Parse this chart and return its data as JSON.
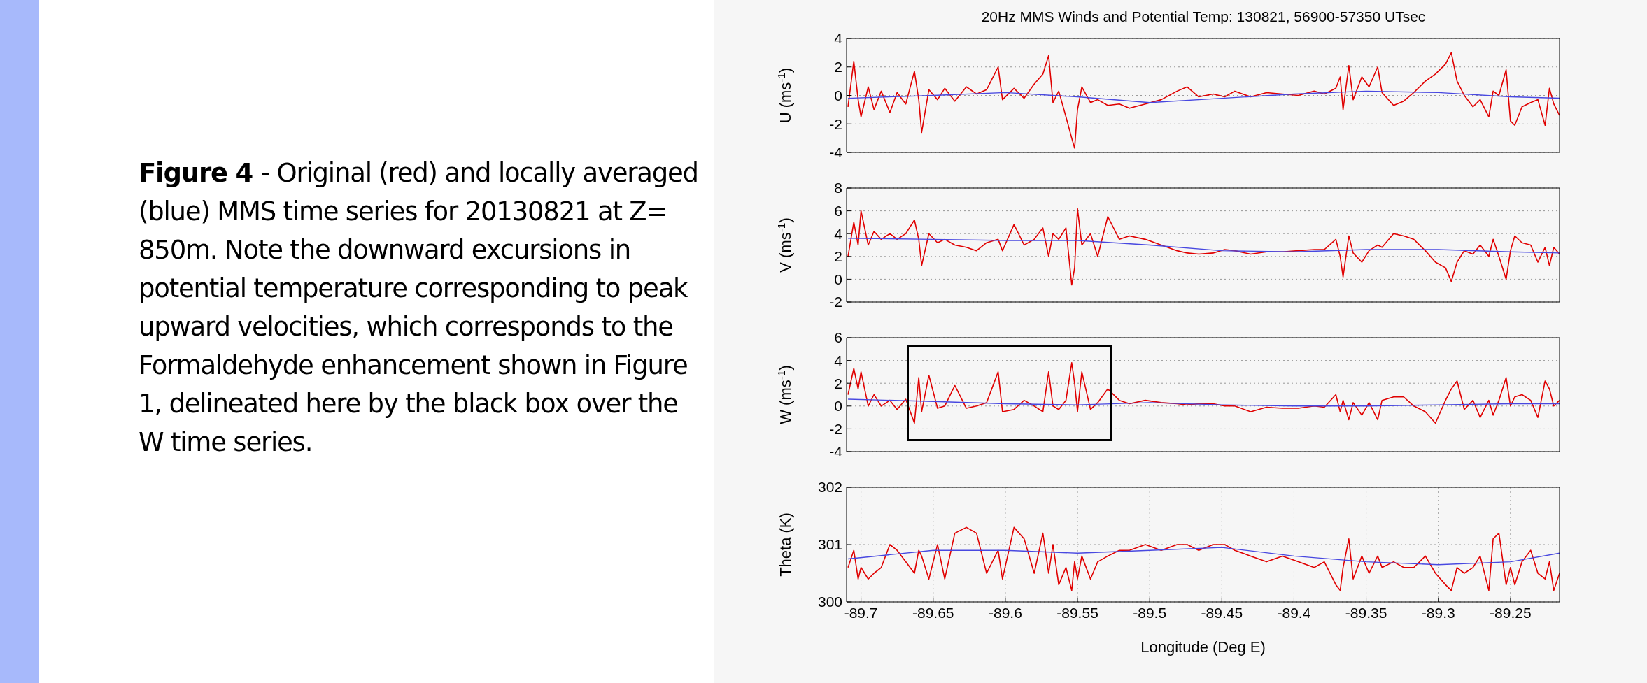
{
  "chart_data": [
    {
      "type": "line",
      "title": "20Hz MMS Winds and Potential Temp: 130821, 56900-57350 UTsec",
      "ylabel": "U (ms$^{-1}$)",
      "annotations": [
        "Figure 4",
        "- Original (red) and locally averaged (blue) MMS time series for 20130821 at Z= 850m.  Note the downward excursions in potential temperature corresponding to peak upward velocities, which corresponds to the Formaldehyde enhancement shown in Figure 1, delineated here by the black box over the W time series."
      ],
      "x": [
        -89.709,
        -89.705,
        -89.702,
        -89.7,
        -89.695,
        -89.691,
        -89.686,
        -89.68,
        -89.675,
        -89.669,
        -89.663,
        -89.66,
        -89.658,
        -89.653,
        -89.647,
        -89.642,
        -89.635,
        -89.627,
        -89.62,
        -89.613,
        -89.605,
        -89.602,
        -89.594,
        -89.587,
        -89.58,
        -89.574,
        -89.57,
        -89.567,
        -89.563,
        -89.558,
        -89.554,
        -89.552,
        -89.55,
        -89.547,
        -89.541,
        -89.536,
        -89.529,
        -89.521,
        -89.514,
        -89.503,
        -89.492,
        -89.481,
        -89.474,
        -89.466,
        -89.456,
        -89.448,
        -89.441,
        -89.43,
        -89.419,
        -89.408,
        -89.397,
        -89.386,
        -89.379,
        -89.371,
        -89.368,
        -89.366,
        -89.362,
        -89.359,
        -89.353,
        -89.348,
        -89.342,
        -89.339,
        -89.331,
        -89.324,
        -89.317,
        -89.309,
        -89.302,
        -89.295,
        -89.291,
        -89.287,
        -89.282,
        -89.276,
        -89.271,
        -89.265,
        -89.262,
        -89.258,
        -89.253,
        -89.25,
        -89.247,
        -89.242,
        -89.236,
        -89.231,
        -89.226,
        -89.223,
        -89.22,
        -89.216
      ],
      "series": [
        {
          "type": "line",
          "color": "#e00000",
          "values": [
            -0.8,
            2.4,
            -0.3,
            -1.5,
            0.6,
            -1.0,
            0.3,
            -1.2,
            0.2,
            -0.6,
            1.7,
            -0.3,
            -2.6,
            0.4,
            -0.3,
            0.5,
            -0.4,
            0.6,
            0.1,
            0.4,
            2.0,
            -0.3,
            0.5,
            -0.2,
            0.8,
            1.5,
            2.8,
            -0.5,
            0.3,
            -1.5,
            -3.0,
            -3.7,
            -1.0,
            0.6,
            -0.5,
            -0.3,
            -0.7,
            -0.6,
            -0.9,
            -0.6,
            -0.3,
            0.3,
            0.6,
            -0.1,
            0.1,
            -0.1,
            0.3,
            -0.1,
            0.2,
            0.1,
            0.0,
            0.3,
            0.1,
            0.5,
            1.3,
            -1.0,
            2.1,
            -0.3,
            1.3,
            0.6,
            2.0,
            0.2,
            -0.7,
            -0.4,
            0.2,
            1.0,
            1.5,
            2.2,
            3.0,
            1.0,
            0.0,
            -0.8,
            -0.3,
            -1.5,
            0.3,
            0.0,
            1.8,
            -1.8,
            -2.1,
            -0.8,
            -0.5,
            -0.3,
            -2.1,
            0.5,
            -0.6,
            -1.4
          ]
        },
        {
          "type": "line",
          "color": "#4848e0",
          "x": [
            -89.709,
            -89.65,
            -89.6,
            -89.55,
            -89.5,
            -89.45,
            -89.4,
            -89.35,
            -89.3,
            -89.25,
            -89.216
          ],
          "values": [
            -0.2,
            0,
            0.2,
            -0.1,
            -0.5,
            -0.2,
            0.1,
            0.3,
            0.2,
            -0.1,
            -0.2
          ]
        }
      ],
      "xlim": [
        -89.71,
        -89.216
      ],
      "xticks": [
        -89.7,
        -89.65,
        -89.6,
        -89.55,
        -89.5,
        -89.45,
        -89.4,
        -89.35,
        -89.3,
        -89.25
      ],
      "ylim": [
        -4,
        4
      ],
      "yticks": [
        -4,
        -2,
        0,
        2,
        4
      ],
      "grid": true,
      "tick_labels": "y"
    },
    {
      "type": "line",
      "ylabel": "V (ms$^{-1}$)",
      "x": [
        -89.709,
        -89.705,
        -89.702,
        -89.7,
        -89.695,
        -89.691,
        -89.686,
        -89.68,
        -89.675,
        -89.669,
        -89.663,
        -89.66,
        -89.658,
        -89.653,
        -89.647,
        -89.642,
        -89.635,
        -89.627,
        -89.62,
        -89.613,
        -89.605,
        -89.602,
        -89.594,
        -89.587,
        -89.58,
        -89.574,
        -89.57,
        -89.567,
        -89.563,
        -89.558,
        -89.554,
        -89.552,
        -89.55,
        -89.547,
        -89.541,
        -89.536,
        -89.529,
        -89.521,
        -89.514,
        -89.503,
        -89.492,
        -89.481,
        -89.474,
        -89.466,
        -89.456,
        -89.448,
        -89.441,
        -89.43,
        -89.419,
        -89.408,
        -89.397,
        -89.386,
        -89.379,
        -89.371,
        -89.368,
        -89.366,
        -89.362,
        -89.359,
        -89.353,
        -89.348,
        -89.342,
        -89.339,
        -89.331,
        -89.324,
        -89.317,
        -89.309,
        -89.302,
        -89.295,
        -89.291,
        -89.287,
        -89.282,
        -89.276,
        -89.271,
        -89.265,
        -89.262,
        -89.258,
        -89.253,
        -89.25,
        -89.247,
        -89.242,
        -89.236,
        -89.231,
        -89.226,
        -89.223,
        -89.22,
        -89.216
      ],
      "series": [
        {
          "type": "line",
          "color": "#e00000",
          "values": [
            2.0,
            5.0,
            3.0,
            6.0,
            3.0,
            4.2,
            3.5,
            4.0,
            3.5,
            4.0,
            5.2,
            3.5,
            1.2,
            4.0,
            3.2,
            3.5,
            3.0,
            2.8,
            2.5,
            3.2,
            3.5,
            2.5,
            4.8,
            3.0,
            3.5,
            4.5,
            2.0,
            4.0,
            3.5,
            4.5,
            -0.5,
            1.0,
            6.2,
            3.0,
            4.0,
            2.0,
            5.5,
            3.5,
            3.8,
            3.5,
            3.0,
            2.5,
            2.3,
            2.2,
            2.3,
            2.6,
            2.5,
            2.2,
            2.4,
            2.4,
            2.5,
            2.6,
            2.6,
            3.5,
            2.0,
            0.2,
            3.8,
            2.3,
            1.5,
            2.5,
            3.0,
            2.8,
            4.0,
            3.8,
            3.5,
            2.5,
            1.5,
            1.0,
            -0.2,
            1.5,
            2.5,
            2.2,
            3.0,
            2.0,
            3.5,
            2.0,
            0.0,
            2.5,
            3.8,
            3.2,
            3.0,
            1.5,
            2.8,
            1.2,
            2.8,
            2.2
          ]
        },
        {
          "type": "line",
          "color": "#4848e0",
          "x": [
            -89.709,
            -89.65,
            -89.6,
            -89.55,
            -89.5,
            -89.45,
            -89.4,
            -89.35,
            -89.3,
            -89.25,
            -89.216
          ],
          "values": [
            3.6,
            3.5,
            3.4,
            3.4,
            3.0,
            2.5,
            2.4,
            2.6,
            2.6,
            2.4,
            2.3
          ]
        }
      ],
      "xlim": [
        -89.71,
        -89.216
      ],
      "xticks": [
        -89.7,
        -89.65,
        -89.6,
        -89.55,
        -89.5,
        -89.45,
        -89.4,
        -89.35,
        -89.3,
        -89.25
      ],
      "ylim": [
        -2,
        8
      ],
      "yticks": [
        -2,
        0,
        2,
        4,
        6,
        8
      ],
      "grid": true,
      "tick_labels": "y"
    },
    {
      "type": "line",
      "ylabel": "W (ms$^{-1}$)",
      "x": [
        -89.709,
        -89.705,
        -89.702,
        -89.7,
        -89.695,
        -89.691,
        -89.686,
        -89.68,
        -89.675,
        -89.669,
        -89.663,
        -89.66,
        -89.658,
        -89.653,
        -89.647,
        -89.642,
        -89.635,
        -89.627,
        -89.62,
        -89.613,
        -89.605,
        -89.602,
        -89.594,
        -89.587,
        -89.58,
        -89.574,
        -89.57,
        -89.567,
        -89.563,
        -89.558,
        -89.554,
        -89.552,
        -89.55,
        -89.547,
        -89.541,
        -89.536,
        -89.529,
        -89.521,
        -89.514,
        -89.503,
        -89.492,
        -89.481,
        -89.474,
        -89.466,
        -89.456,
        -89.448,
        -89.441,
        -89.43,
        -89.419,
        -89.408,
        -89.397,
        -89.386,
        -89.379,
        -89.371,
        -89.368,
        -89.366,
        -89.362,
        -89.359,
        -89.353,
        -89.348,
        -89.342,
        -89.339,
        -89.331,
        -89.324,
        -89.317,
        -89.309,
        -89.302,
        -89.295,
        -89.291,
        -89.287,
        -89.282,
        -89.276,
        -89.271,
        -89.265,
        -89.262,
        -89.258,
        -89.253,
        -89.25,
        -89.247,
        -89.242,
        -89.236,
        -89.231,
        -89.226,
        -89.223,
        -89.22,
        -89.216
      ],
      "series": [
        {
          "type": "line",
          "color": "#e00000",
          "values": [
            1.0,
            3.3,
            1.5,
            3.0,
            0.0,
            1.0,
            0.0,
            0.5,
            -0.3,
            0.6,
            -1.5,
            2.5,
            -0.5,
            2.7,
            -0.2,
            0.0,
            1.8,
            -0.2,
            0.0,
            0.3,
            3.0,
            -0.5,
            -0.3,
            0.5,
            0.0,
            -0.5,
            3.0,
            0.0,
            -0.3,
            0.5,
            3.8,
            2.0,
            -0.5,
            3.0,
            -0.3,
            0.3,
            1.5,
            0.5,
            0.2,
            0.5,
            0.3,
            0.2,
            0.1,
            0.2,
            0.2,
            0.0,
            0.0,
            -0.5,
            -0.1,
            -0.2,
            -0.2,
            0.0,
            -0.1,
            1.0,
            -0.5,
            0.5,
            -1.2,
            0.3,
            -0.8,
            0.3,
            -1.2,
            0.5,
            0.8,
            0.8,
            0.0,
            -0.5,
            -1.5,
            0.5,
            1.5,
            2.2,
            -0.3,
            0.5,
            -1.0,
            0.5,
            -0.8,
            0.5,
            2.5,
            0.0,
            0.8,
            1.0,
            0.5,
            -1.0,
            2.2,
            1.5,
            0.0,
            0.5
          ]
        },
        {
          "type": "line",
          "color": "#4848e0",
          "x": [
            -89.709,
            -89.65,
            -89.6,
            -89.55,
            -89.5,
            -89.45,
            -89.4,
            -89.35,
            -89.3,
            -89.25,
            -89.216
          ],
          "values": [
            0.6,
            0.4,
            0.2,
            0.1,
            0.3,
            0.1,
            0.0,
            0.0,
            0.1,
            0.2,
            0.2
          ]
        }
      ],
      "xlim": [
        -89.71,
        -89.216
      ],
      "xticks": [
        -89.7,
        -89.65,
        -89.6,
        -89.55,
        -89.5,
        -89.45,
        -89.4,
        -89.35,
        -89.3,
        -89.25
      ],
      "ylim": [
        -4,
        6
      ],
      "yticks": [
        -4,
        -2,
        0,
        2,
        4,
        6
      ],
      "grid": true,
      "tick_labels": "y"
    },
    {
      "type": "line",
      "ylabel": "Theta (K)",
      "xlabel": "Longitude (Deg E)",
      "x": [
        -89.709,
        -89.705,
        -89.702,
        -89.7,
        -89.695,
        -89.691,
        -89.686,
        -89.68,
        -89.675,
        -89.669,
        -89.663,
        -89.66,
        -89.658,
        -89.653,
        -89.647,
        -89.642,
        -89.635,
        -89.627,
        -89.62,
        -89.613,
        -89.605,
        -89.602,
        -89.594,
        -89.587,
        -89.58,
        -89.574,
        -89.57,
        -89.567,
        -89.563,
        -89.558,
        -89.554,
        -89.552,
        -89.55,
        -89.547,
        -89.541,
        -89.536,
        -89.529,
        -89.521,
        -89.514,
        -89.503,
        -89.492,
        -89.481,
        -89.474,
        -89.466,
        -89.456,
        -89.448,
        -89.441,
        -89.43,
        -89.419,
        -89.408,
        -89.397,
        -89.386,
        -89.379,
        -89.371,
        -89.368,
        -89.366,
        -89.362,
        -89.359,
        -89.353,
        -89.348,
        -89.342,
        -89.339,
        -89.331,
        -89.324,
        -89.317,
        -89.309,
        -89.302,
        -89.295,
        -89.291,
        -89.287,
        -89.282,
        -89.276,
        -89.271,
        -89.265,
        -89.262,
        -89.258,
        -89.253,
        -89.25,
        -89.247,
        -89.242,
        -89.236,
        -89.231,
        -89.226,
        -89.223,
        -89.22,
        -89.216
      ],
      "series": [
        {
          "type": "line",
          "color": "#e00000",
          "values": [
            300.6,
            300.9,
            300.4,
            300.6,
            300.4,
            300.5,
            300.6,
            301.0,
            300.9,
            300.7,
            300.5,
            300.9,
            300.8,
            300.4,
            301.0,
            300.4,
            301.2,
            301.3,
            301.2,
            300.5,
            300.9,
            300.4,
            301.3,
            301.1,
            300.5,
            301.2,
            300.5,
            301.0,
            300.3,
            300.6,
            300.2,
            300.7,
            300.4,
            300.8,
            300.4,
            300.7,
            300.8,
            300.9,
            300.9,
            301.0,
            300.9,
            301.0,
            301.0,
            300.9,
            301.0,
            301.0,
            300.9,
            300.8,
            300.7,
            300.8,
            300.7,
            300.6,
            300.7,
            300.3,
            300.2,
            300.6,
            301.1,
            300.4,
            300.8,
            300.5,
            300.8,
            300.6,
            300.7,
            300.6,
            300.6,
            300.8,
            300.5,
            300.3,
            300.2,
            300.6,
            300.5,
            300.6,
            300.8,
            300.2,
            301.1,
            301.2,
            300.3,
            300.6,
            300.3,
            300.7,
            300.9,
            300.5,
            300.4,
            300.7,
            300.2,
            300.5
          ]
        },
        {
          "type": "line",
          "color": "#4848e0",
          "x": [
            -89.709,
            -89.65,
            -89.6,
            -89.55,
            -89.5,
            -89.45,
            -89.4,
            -89.35,
            -89.3,
            -89.25,
            -89.216
          ],
          "values": [
            300.75,
            300.9,
            300.9,
            300.85,
            300.9,
            300.95,
            300.8,
            300.7,
            300.65,
            300.7,
            300.85
          ]
        }
      ],
      "xlim": [
        -89.71,
        -89.216
      ],
      "xticks": [
        -89.7,
        -89.65,
        -89.6,
        -89.55,
        -89.5,
        -89.45,
        -89.4,
        -89.35,
        -89.3,
        -89.25
      ],
      "ylim": [
        300,
        302
      ],
      "yticks": [
        300,
        301,
        302
      ],
      "grid": true
    }
  ]
}
